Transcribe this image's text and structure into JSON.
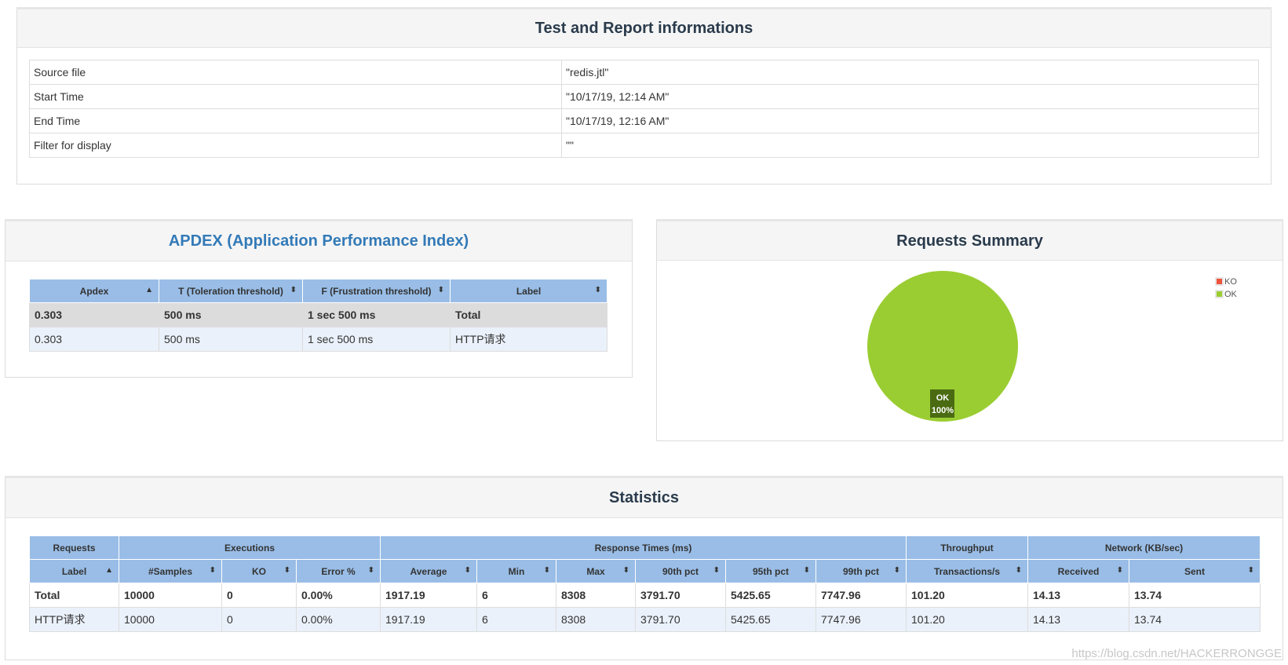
{
  "info": {
    "title": "Test and Report informations",
    "rows": [
      {
        "key": "Source file",
        "value": "\"redis.jtl\""
      },
      {
        "key": "Start Time",
        "value": "\"10/17/19, 12:14 AM\""
      },
      {
        "key": "End Time",
        "value": "\"10/17/19, 12:16 AM\""
      },
      {
        "key": "Filter for display",
        "value": "\"\""
      }
    ]
  },
  "apdex": {
    "title": "APDEX (Application Performance Index)",
    "headers": [
      "Apdex",
      "T (Toleration threshold)",
      "F (Frustration threshold)",
      "Label"
    ],
    "sort_icons": [
      "▲",
      "⬍",
      "⬍",
      "⬍"
    ],
    "rows": [
      [
        "0.303",
        "500 ms",
        "1 sec 500 ms",
        "Total"
      ],
      [
        "0.303",
        "500 ms",
        "1 sec 500 ms",
        "HTTP请求"
      ]
    ]
  },
  "summary": {
    "title": "Requests Summary",
    "legend": [
      {
        "label": "KO",
        "color": "#f0533b"
      },
      {
        "label": "OK",
        "color": "#9acd32"
      }
    ],
    "slice_label": "OK",
    "slice_percent": "100%"
  },
  "chart_data": {
    "type": "pie",
    "title": "Requests Summary",
    "slices": [
      {
        "label": "KO",
        "value": 0,
        "color": "#f0533b"
      },
      {
        "label": "OK",
        "value": 100,
        "color": "#9acd32"
      }
    ],
    "legend_position": "top-right"
  },
  "statistics": {
    "title": "Statistics",
    "groups": [
      {
        "label": "Requests",
        "span": 1
      },
      {
        "label": "Executions",
        "span": 3
      },
      {
        "label": "Response Times (ms)",
        "span": 6
      },
      {
        "label": "Throughput",
        "span": 1
      },
      {
        "label": "Network (KB/sec)",
        "span": 2
      }
    ],
    "columns": [
      "Label",
      "#Samples",
      "KO",
      "Error %",
      "Average",
      "Min",
      "Max",
      "90th pct",
      "95th pct",
      "99th pct",
      "Transactions/s",
      "Received",
      "Sent"
    ],
    "sort_icons": [
      "▲",
      "⬍",
      "⬍",
      "⬍",
      "⬍",
      "⬍",
      "⬍",
      "⬍",
      "⬍",
      "⬍",
      "⬍",
      "⬍",
      "⬍"
    ],
    "rows": [
      [
        "Total",
        "10000",
        "0",
        "0.00%",
        "1917.19",
        "6",
        "8308",
        "3791.70",
        "5425.65",
        "7747.96",
        "101.20",
        "14.13",
        "13.74"
      ],
      [
        "HTTP请求",
        "10000",
        "0",
        "0.00%",
        "1917.19",
        "6",
        "8308",
        "3791.70",
        "5425.65",
        "7747.96",
        "101.20",
        "14.13",
        "13.74"
      ]
    ]
  },
  "watermark": "https://blog.csdn.net/HACKERRONGGE"
}
